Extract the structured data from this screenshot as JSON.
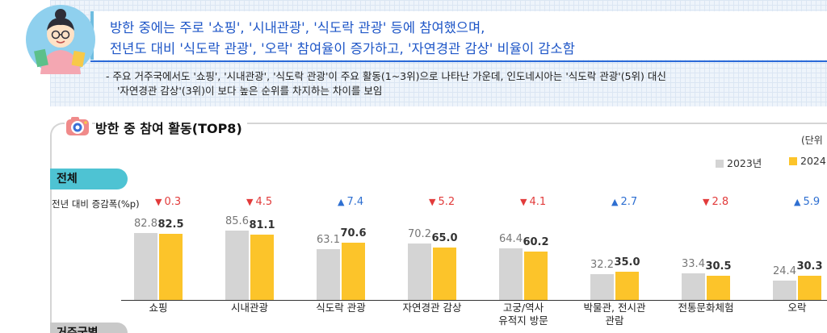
{
  "headline": {
    "line1": "방한 중에는 주로 '쇼핑', '시내관광', '식도락 관광' 등에 참여했으며,",
    "line2": "전년도 대비 '식도락 관광', '오락' 참여율이 증가하고, '자연경관 감상' 비율이 감소함"
  },
  "bullet": {
    "line1": "- 주요 거주국에서도 '쇼핑', '시내관광', '식도락 관광'이 주요 활동(1~3위)으로 나타난 가운데, 인도네시아는 '식도락 관광'(5위) 대신",
    "line2": "'자연경관 감상'(3위)이 보다 높은 순위를 차지하는 차이를 보임"
  },
  "section": {
    "title": "방한 중 참여 활동(TOP8)",
    "unit": "(단위",
    "group1": "전체",
    "group2": "거주국별",
    "change_label": "전년 대비 증감폭(%p)"
  },
  "colors": {
    "prev": "#d4d4d4",
    "cur": "#fcc42a",
    "down": "#e23b3b",
    "up": "#2e6fd1",
    "accent": "#4ec3d3"
  },
  "chart_data": {
    "type": "bar",
    "title": "방한 중 참여 활동(TOP8)",
    "categories": [
      "쇼핑",
      "시내관광",
      "식도락 관광",
      "자연경관 감상",
      "고궁/역사\n유적지 방문",
      "박물관, 전시관\n관람",
      "전통문화체험",
      "오락"
    ],
    "series": [
      {
        "name": "2023년",
        "values": [
          82.8,
          85.6,
          63.1,
          70.2,
          64.4,
          32.2,
          33.4,
          24.4
        ]
      },
      {
        "name": "2024",
        "values": [
          82.5,
          81.1,
          70.6,
          65.0,
          60.2,
          35.0,
          30.5,
          30.3
        ]
      }
    ],
    "changes": [
      {
        "dir": "down",
        "value": "0.3"
      },
      {
        "dir": "down",
        "value": "4.5"
      },
      {
        "dir": "up",
        "value": "7.4"
      },
      {
        "dir": "down",
        "value": "5.2"
      },
      {
        "dir": "down",
        "value": "4.1"
      },
      {
        "dir": "up",
        "value": "2.7"
      },
      {
        "dir": "down",
        "value": "2.8"
      },
      {
        "dir": "up",
        "value": "5.9"
      }
    ],
    "ylim": [
      0,
      100
    ],
    "legend": "top-right"
  }
}
